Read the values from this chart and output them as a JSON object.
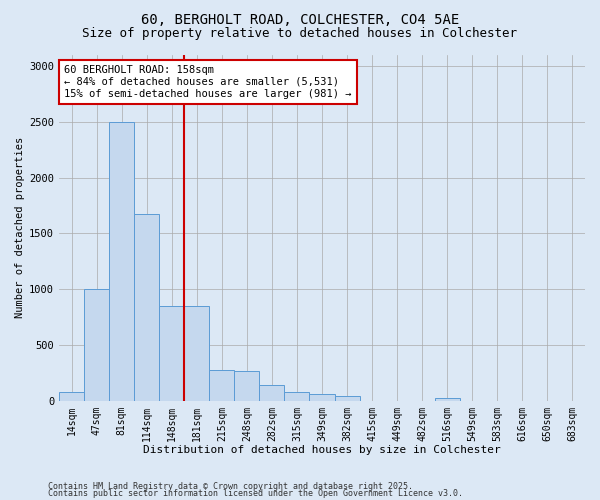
{
  "title_line1": "60, BERGHOLT ROAD, COLCHESTER, CO4 5AE",
  "title_line2": "Size of property relative to detached houses in Colchester",
  "xlabel": "Distribution of detached houses by size in Colchester",
  "ylabel": "Number of detached properties",
  "categories": [
    "14sqm",
    "47sqm",
    "81sqm",
    "114sqm",
    "148sqm",
    "181sqm",
    "215sqm",
    "248sqm",
    "282sqm",
    "315sqm",
    "349sqm",
    "382sqm",
    "415sqm",
    "449sqm",
    "482sqm",
    "516sqm",
    "549sqm",
    "583sqm",
    "616sqm",
    "650sqm",
    "683sqm"
  ],
  "values": [
    75,
    1000,
    2500,
    1675,
    850,
    850,
    275,
    270,
    140,
    75,
    60,
    40,
    0,
    0,
    0,
    25,
    0,
    0,
    0,
    0,
    0
  ],
  "bar_color": "#c5d8ee",
  "bar_edge_color": "#5b9bd5",
  "vline_x": 4.5,
  "vline_color": "#cc0000",
  "annotation_text": "60 BERGHOLT ROAD: 158sqm\n← 84% of detached houses are smaller (5,531)\n15% of semi-detached houses are larger (981) →",
  "annotation_box_color": "#ffffff",
  "annotation_box_edge": "#cc0000",
  "ylim": [
    0,
    3100
  ],
  "yticks": [
    0,
    500,
    1000,
    1500,
    2000,
    2500,
    3000
  ],
  "footnote1": "Contains HM Land Registry data © Crown copyright and database right 2025.",
  "footnote2": "Contains public sector information licensed under the Open Government Licence v3.0.",
  "bg_color": "#dce8f5",
  "plot_bg_color": "#dce8f5",
  "title_fontsize": 10,
  "subtitle_fontsize": 9
}
